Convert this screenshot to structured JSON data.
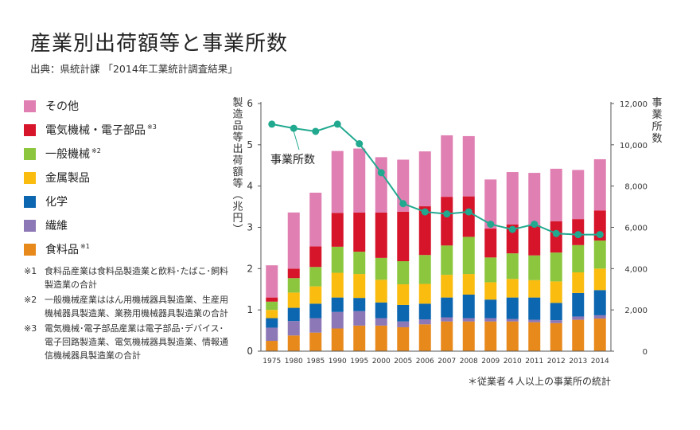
{
  "header": {
    "title": "産業別出荷額等と事業所数",
    "source": "出典：県統計課 「2014年工業統計調査結果」"
  },
  "legend": [
    {
      "label": "その他",
      "note": "",
      "color": "#e07fb2"
    },
    {
      "label": "電気機械・電子部品",
      "note": "※3",
      "color": "#d6142a"
    },
    {
      "label": "一般機械",
      "note": "※2",
      "color": "#8cc63e"
    },
    {
      "label": "金属製品",
      "note": "",
      "color": "#f9bc0f"
    },
    {
      "label": "化学",
      "note": "",
      "color": "#0d66b0"
    },
    {
      "label": "繊維",
      "note": "",
      "color": "#8c78b6"
    },
    {
      "label": "食料品",
      "note": "※1",
      "color": "#e8891c"
    }
  ],
  "notes": [
    {
      "mark": "※1",
      "text": "食料品産業は食料品製造業と飲料･たばこ･飼料製造業の合計"
    },
    {
      "mark": "※2",
      "text": "一般機械産業ははん用機械器具製造業、生産用機械器具製造業、業務用機械器具製造業の合計"
    },
    {
      "mark": "※3",
      "text": "電気機械･電子部品産業は電子部品･デバイス･電子回路製造業、電気機械器具製造業、情報通信機械器具製造業の合計"
    }
  ],
  "footnote": "＊従業者４人以上の事業所の統計",
  "chart_data": {
    "type": "bar",
    "stacked": true,
    "categories": [
      "1975",
      "1980",
      "1985",
      "1990",
      "1995",
      "2000",
      "2005",
      "2006",
      "2007",
      "2008",
      "2009",
      "2010",
      "2011",
      "2012",
      "2013",
      "2014"
    ],
    "series": [
      {
        "name": "食料品",
        "color": "#e8891c",
        "values": [
          0.25,
          0.38,
          0.45,
          0.55,
          0.62,
          0.62,
          0.58,
          0.65,
          0.72,
          0.72,
          0.72,
          0.72,
          0.7,
          0.68,
          0.76,
          0.79
        ]
      },
      {
        "name": "繊維",
        "color": "#8c78b6",
        "values": [
          0.32,
          0.35,
          0.35,
          0.4,
          0.35,
          0.18,
          0.14,
          0.12,
          0.1,
          0.08,
          0.08,
          0.06,
          0.06,
          0.07,
          0.08,
          0.08
        ]
      },
      {
        "name": "化学",
        "color": "#0d66b0",
        "values": [
          0.23,
          0.32,
          0.35,
          0.35,
          0.32,
          0.38,
          0.4,
          0.38,
          0.48,
          0.57,
          0.45,
          0.52,
          0.54,
          0.42,
          0.57,
          0.61
        ]
      },
      {
        "name": "金属製品",
        "color": "#f9bc0f",
        "values": [
          0.2,
          0.37,
          0.42,
          0.6,
          0.58,
          0.55,
          0.5,
          0.48,
          0.55,
          0.5,
          0.42,
          0.45,
          0.42,
          0.52,
          0.5,
          0.52
        ]
      },
      {
        "name": "一般機械",
        "color": "#8cc63e",
        "values": [
          0.2,
          0.35,
          0.47,
          0.63,
          0.54,
          0.53,
          0.56,
          0.7,
          0.71,
          0.9,
          0.6,
          0.62,
          0.6,
          0.7,
          0.66,
          0.68
        ]
      },
      {
        "name": "電気機械・電子部品",
        "color": "#d6142a",
        "values": [
          0.1,
          0.23,
          0.5,
          0.82,
          0.95,
          1.1,
          1.2,
          1.18,
          1.18,
          0.98,
          0.7,
          0.7,
          0.73,
          0.76,
          0.63,
          0.73
        ]
      },
      {
        "name": "その他",
        "color": "#e07fb2",
        "values": [
          0.78,
          1.36,
          1.3,
          1.5,
          1.55,
          1.34,
          1.26,
          1.33,
          1.49,
          1.46,
          1.19,
          1.27,
          1.27,
          1.27,
          1.19,
          1.24
        ]
      }
    ],
    "line": {
      "name": "事業所数",
      "axis": "right",
      "values": [
        11000,
        10800,
        10650,
        11000,
        10050,
        8650,
        7150,
        6750,
        6650,
        6750,
        6150,
        5900,
        6150,
        5700,
        5650,
        5650
      ]
    },
    "ylabel": "製造品等出荷額等（兆円）",
    "y2label": "事業所数",
    "ylim": [
      0,
      6
    ],
    "y2lim": [
      0,
      12000
    ],
    "yticks": [
      "0",
      "1",
      "2",
      "3",
      "4",
      "5",
      "6"
    ],
    "y2ticks": [
      "0",
      "2,000",
      "4,000",
      "6,000",
      "8,000",
      "10,000",
      "12,000"
    ],
    "annotation": "事業所数",
    "grid": false
  }
}
